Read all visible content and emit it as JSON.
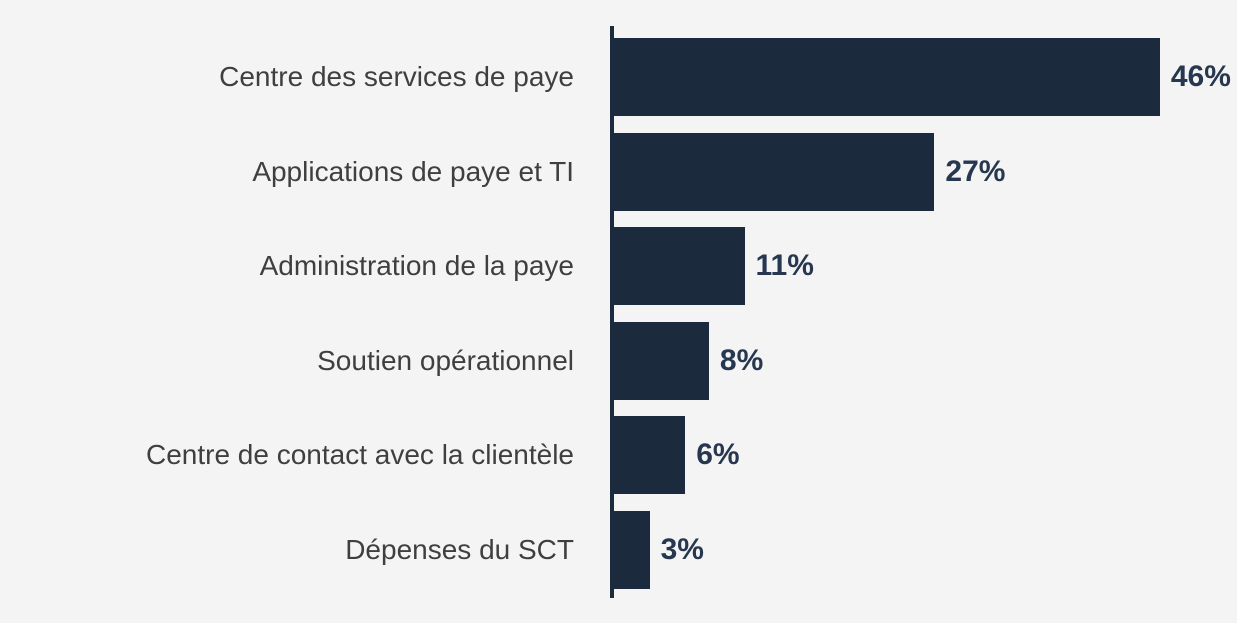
{
  "page": {
    "background_color": "#f4f4f4"
  },
  "chart_data": {
    "type": "bar",
    "orientation": "horizontal",
    "title": "",
    "xlabel": "",
    "ylabel": "",
    "categories": [
      "Centre des services de paye",
      "Applications de paye et TI",
      "Administration de la paye",
      "Soutien opérationnel",
      "Centre de contact avec la clientèle",
      "Dépenses du SCT"
    ],
    "values": [
      46,
      27,
      11,
      8,
      6,
      3
    ],
    "value_labels": [
      "46%",
      "27%",
      "11%",
      "8%",
      "6%",
      "3%"
    ],
    "unit": "%",
    "xlim": [
      0,
      52.5
    ],
    "grid": false,
    "legend": false,
    "colors": {
      "bar": "#1b2a3c",
      "axis_line": "#1b2a3c",
      "value_label": "#26374f",
      "category_label": "#3f3f3f",
      "background": "#f4f4f4"
    }
  }
}
